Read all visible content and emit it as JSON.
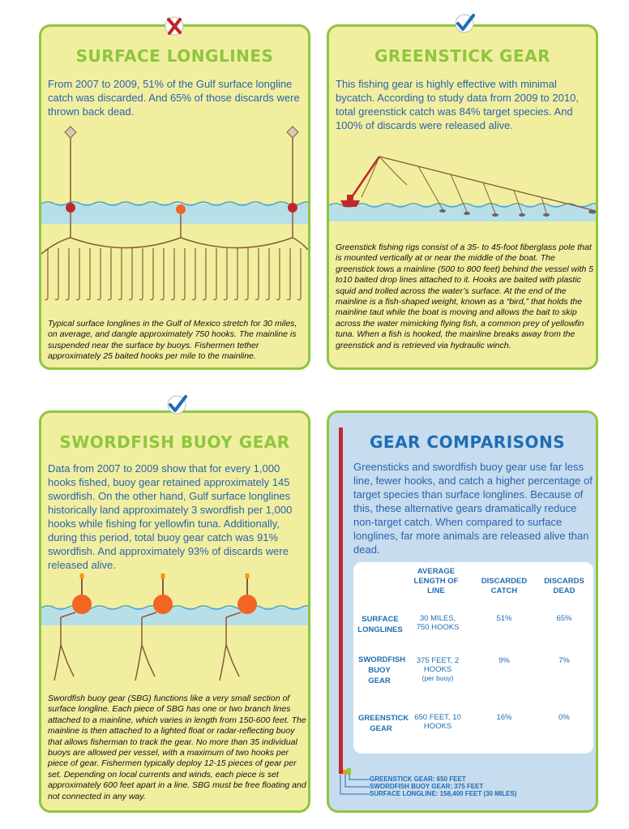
{
  "cards": {
    "surface": {
      "title": "SURFACE LONGLINES",
      "intro": "From 2007 to 2009, 51% of the Gulf surface longline catch was discarded. And 65% of those discards were thrown back dead.",
      "caption": "Typical surface longlines in the Gulf of Mexico stretch for 30 miles, on average, and dangle approximately 750 hooks. The mainline is suspended near the surface by buoys. Fishermen tether approximately 25 baited hooks per mile to the mainline.",
      "mark": "x-mark-icon"
    },
    "greenstick": {
      "title": "GREENSTICK GEAR",
      "intro": "This fishing gear is highly effective with minimal bycatch. According to study data from 2009 to 2010, total greenstick catch was 84% target species. And 100% of discards were released alive.",
      "caption": "Greenstick fishing rigs consist of a 35- to 45-foot fiberglass pole that is mounted vertically at or near the middle of the boat. The greenstick tows a mainline (500 to 800 feet) behind the vessel with 5 to10 baited drop lines attached to it. Hooks are baited with plastic squid and trolled across the water’s surface. At the end of the mainline is a fish-shaped weight, known as a “bird,” that holds the mainline taut while the boat is moving and allows the bait to skip across the water mimicking flying fish, a common prey of yellowfin tuna. When a fish is hooked, the mainline breaks away from the greenstick and is retrieved via hydraulic winch.",
      "mark": "check-mark-icon"
    },
    "swordfish": {
      "title": "SWORDFISH BUOY GEAR",
      "intro": "Data from 2007 to 2009 show that for every 1,000 hooks fished, buoy gear retained approximately 145 swordfish. On the other hand, Gulf surface longlines historically land approximately 3 swordfish per 1,000 hooks while fishing for yellowfin tuna. Additionally, during this period, total buoy gear catch was 91% swordfish. And approximately 93% of discards were released alive.",
      "caption": "Swordfish buoy gear (SBG) functions like a very small section of surface longline. Each piece of SBG has one or two branch lines attached to a mainline, which varies in length from 150-600 feet. The mainline is then attached to a lighted float or radar-reflecting buoy that allows fisherman to track the gear. No more than 35 individual buoys are allowed per vessel, with a maximum of two hooks per piece of gear. Fishermen typically deploy 12-15 pieces of gear per set. Depending on local currents and winds, each piece is set approximately 600 feet apart in a line. SBG must be free floating and not connected in any way.",
      "mark": "check-mark-icon"
    },
    "comparison": {
      "title": "GEAR COMPARISONS",
      "intro": "Greensticks and swordfish buoy gear use far less line, fewer hooks, and catch a higher percentage of target species than surface longlines. Because of this, these alternative gears dramatically reduce non-target catch. When compared to surface longlines, far more animals are released alive than dead.",
      "table": {
        "headers": [
          "AVERAGE LENGTH OF LINE",
          "DISCARDED CATCH",
          "DISCARDS DEAD"
        ],
        "rows": [
          {
            "name": "SURFACE LONGLINES",
            "length": "30 MILES, 750 HOOKS",
            "length_note": "",
            "discarded": "51%",
            "dead": "65%"
          },
          {
            "name": "SWORDFISH BUOY GEAR",
            "length": "375 FEET, 2 HOOKS",
            "length_note": "(per buoy)",
            "discarded": "9%",
            "dead": "7%"
          },
          {
            "name": "GREENSTICK GEAR",
            "length": "650 FEET, 10 HOOKS",
            "length_note": "",
            "discarded": "16%",
            "dead": "0%"
          }
        ]
      },
      "legend": [
        {
          "label": "GREENSTICK GEAR: 650 FEET",
          "color": "#8dc63f"
        },
        {
          "label": "SWORDFISH BUOY GEAR: 375 FEET",
          "color": "#f7941d"
        },
        {
          "label": "SURFACE LONGLINE: 158,400 FEET (30 MILES)",
          "color": "#c1272d"
        }
      ]
    }
  },
  "colors": {
    "green": "#8dc63f",
    "card_yellow": "#f1ef9f",
    "card_blue": "#c7dcee",
    "intro_blue": "#2a63ad",
    "heading_blue": "#1e6db3",
    "red": "#c1272d",
    "orange": "#f26522",
    "water": "#b7dfe8",
    "line_brown": "#8a5a3a"
  }
}
